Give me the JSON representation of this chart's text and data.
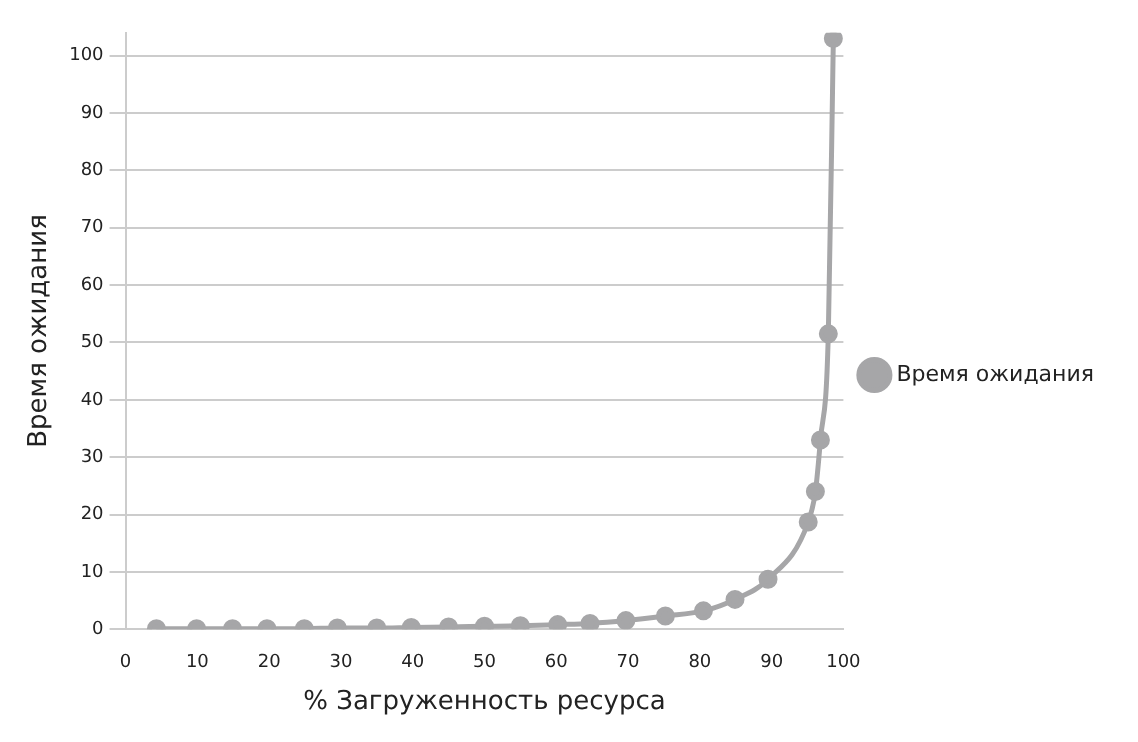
{
  "chart_data": {
    "type": "line",
    "xlabel": "% Загруженность ресурса",
    "ylabel": "Время ожидания",
    "xlim": [
      0,
      100
    ],
    "xticks": [
      0,
      10,
      20,
      30,
      40,
      50,
      60,
      70,
      80,
      90,
      100
    ],
    "ylim": [
      0,
      104
    ],
    "yticks": [
      0,
      10,
      20,
      30,
      40,
      50,
      60,
      70,
      80,
      90,
      100
    ],
    "grid": "y",
    "legend": "right",
    "marker": "circle",
    "line_style": "solid",
    "series": [
      {
        "name": "Время ожидания",
        "color": "#a6a6a8",
        "x": [
          4.3,
          9.9,
          14.9,
          19.7,
          24.9,
          29.5,
          35,
          39.8,
          45,
          50,
          55,
          60.2,
          64.7,
          69.7,
          75.2,
          80.5,
          84.9,
          89.5,
          95.1,
          96.1,
          96.8,
          97.9,
          98.6
        ],
        "values": [
          0.1,
          0.1,
          0.1,
          0.1,
          0.1,
          0.2,
          0.2,
          0.3,
          0.4,
          0.5,
          0.6,
          0.8,
          1.0,
          1.5,
          2.3,
          3.2,
          5.2,
          8.7,
          18.7,
          24,
          33,
          51.5,
          103
        ]
      }
    ]
  }
}
